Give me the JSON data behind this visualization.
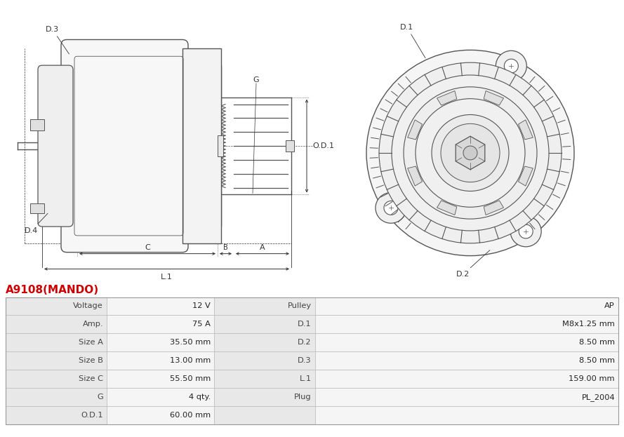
{
  "title": "A9108(MANDO)",
  "title_color": "#cc0000",
  "title_fontsize": 11,
  "table_rows": [
    [
      "Voltage",
      "12 V",
      "Pulley",
      "AP"
    ],
    [
      "Amp.",
      "75 A",
      "D.1",
      "M8x1.25 mm"
    ],
    [
      "Size A",
      "35.50 mm",
      "D.2",
      "8.50 mm"
    ],
    [
      "Size B",
      "13.00 mm",
      "D.3",
      "8.50 mm"
    ],
    [
      "Size C",
      "55.50 mm",
      "L.1",
      "159.00 mm"
    ],
    [
      "G",
      "4 qty.",
      "Plug",
      "PL_2004"
    ],
    [
      "O.D.1",
      "60.00 mm",
      "",
      ""
    ]
  ],
  "row_bg_label": "#e8e8e8",
  "row_bg_value": "#f5f5f5",
  "border_color": "#bbbbbb",
  "text_color_label": "#444444",
  "text_color_value": "#222222",
  "line_color": "#555555",
  "dim_color": "#333333",
  "bg_color": "#ffffff",
  "drawing_bg": "#ffffff",
  "fig_width": 8.89,
  "fig_height": 6.23,
  "dpi": 100
}
